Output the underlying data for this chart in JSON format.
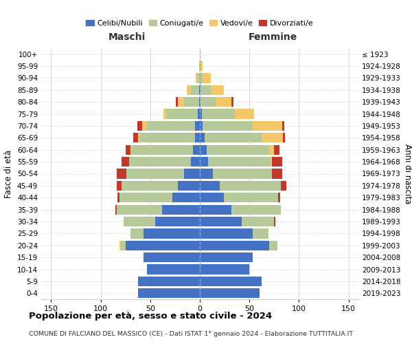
{
  "age_groups": [
    "0-4",
    "5-9",
    "10-14",
    "15-19",
    "20-24",
    "25-29",
    "30-34",
    "35-39",
    "40-44",
    "45-49",
    "50-54",
    "55-59",
    "60-64",
    "65-69",
    "70-74",
    "75-79",
    "80-84",
    "85-89",
    "90-94",
    "95-99",
    "100+"
  ],
  "birth_years": [
    "2019-2023",
    "2014-2018",
    "2009-2013",
    "2004-2008",
    "1999-2003",
    "1994-1998",
    "1989-1993",
    "1984-1988",
    "1979-1983",
    "1974-1978",
    "1969-1973",
    "1964-1968",
    "1959-1963",
    "1954-1958",
    "1949-1953",
    "1944-1948",
    "1939-1943",
    "1934-1938",
    "1929-1933",
    "1924-1928",
    "≤ 1923"
  ],
  "maschi": {
    "celibi": [
      62,
      62,
      53,
      57,
      75,
      57,
      45,
      38,
      28,
      22,
      16,
      9,
      7,
      5,
      5,
      2,
      1,
      1,
      0,
      0,
      0
    ],
    "coniugati": [
      0,
      0,
      0,
      0,
      5,
      13,
      32,
      46,
      53,
      57,
      58,
      62,
      62,
      55,
      48,
      32,
      15,
      8,
      2,
      1,
      0
    ],
    "vedovi": [
      0,
      0,
      0,
      0,
      1,
      0,
      0,
      0,
      0,
      0,
      0,
      0,
      1,
      2,
      5,
      3,
      6,
      4,
      2,
      0,
      0
    ],
    "divorziati": [
      0,
      0,
      0,
      0,
      0,
      0,
      0,
      1,
      2,
      5,
      10,
      8,
      5,
      5,
      5,
      0,
      2,
      0,
      0,
      0,
      0
    ]
  },
  "femmine": {
    "nubili": [
      60,
      62,
      50,
      53,
      70,
      53,
      42,
      32,
      24,
      20,
      13,
      8,
      7,
      5,
      3,
      2,
      1,
      1,
      0,
      0,
      0
    ],
    "coniugate": [
      0,
      0,
      0,
      0,
      8,
      16,
      33,
      50,
      55,
      62,
      60,
      63,
      63,
      57,
      50,
      33,
      15,
      10,
      3,
      1,
      0
    ],
    "vedove": [
      0,
      0,
      0,
      0,
      0,
      0,
      0,
      0,
      0,
      0,
      0,
      2,
      5,
      22,
      30,
      20,
      16,
      13,
      8,
      2,
      0
    ],
    "divorziate": [
      0,
      0,
      0,
      0,
      0,
      0,
      1,
      0,
      2,
      5,
      10,
      10,
      5,
      2,
      2,
      0,
      2,
      0,
      0,
      0,
      0
    ]
  },
  "colors": {
    "celibi": "#4472c4",
    "coniugati": "#b5c99a",
    "vedovi": "#f4c76a",
    "divorziati": "#c0392b"
  },
  "xlim": 160,
  "title": "Popolazione per età, sesso e stato civile - 2024",
  "subtitle": "COMUNE DI FALCIANO DEL MASSICO (CE) - Dati ISTAT 1° gennaio 2024 - Elaborazione TUTTITALIA.IT",
  "ylabel": "Fasce di età",
  "ylabel_right": "Anni di nascita",
  "label_maschi": "Maschi",
  "label_femmine": "Femmine",
  "legend_labels": [
    "Celibi/Nubili",
    "Coniugati/e",
    "Vedovi/e",
    "Divorziati/e"
  ]
}
